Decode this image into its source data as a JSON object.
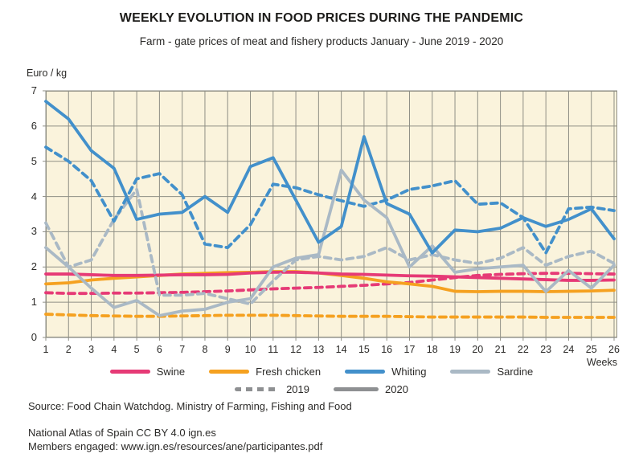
{
  "title": "WEEKLY EVOLUTION IN FOOD PRICES DURING THE PANDEMIC",
  "subtitle": "Farm - gate prices of meat and fishery products January - June 2019 - 2020",
  "y_axis_unit": "Euro / kg",
  "x_axis_label": "Weeks",
  "footer": {
    "source": "Source: Food Chain Watchdog. Ministry of Farming, Fishing and Food",
    "attribution": "National Atlas of Spain CC BY 4.0 ign.es",
    "members": "Members engaged: www.ign.es/resources/ane/participantes.pdf"
  },
  "legend": {
    "products": [
      {
        "label": "Swine",
        "color": "#e63a76"
      },
      {
        "label": "Fresh chicken",
        "color": "#f5a120"
      },
      {
        "label": "Whiting",
        "color": "#4290cb"
      },
      {
        "label": "Sardine",
        "color": "#aab9c5"
      }
    ],
    "years": [
      {
        "label": "2019",
        "style": "dashed",
        "color": "#8e9092"
      },
      {
        "label": "2020",
        "style": "solid",
        "color": "#8e9092"
      }
    ]
  },
  "colors": {
    "plot_background": "#faf3dc",
    "grid": "#8f8f85",
    "text": "#2b2a28"
  },
  "chart_data": {
    "type": "line",
    "title": "WEEKLY EVOLUTION IN FOOD PRICES DURING THE PANDEMIC",
    "subtitle": "Farm - gate prices of meat and fishery products January - June 2019 - 2020",
    "xlabel": "Weeks",
    "ylabel": "Euro / kg",
    "x": [
      1,
      2,
      3,
      4,
      5,
      6,
      7,
      8,
      9,
      10,
      11,
      12,
      13,
      14,
      15,
      16,
      17,
      18,
      19,
      20,
      21,
      22,
      23,
      24,
      25,
      26
    ],
    "x_tick_labels": [
      "1",
      "2",
      "3",
      "4",
      "5",
      "6",
      "7",
      "8",
      "9",
      "10",
      "11",
      "12",
      "13",
      "14",
      "15",
      "16",
      "17",
      "18",
      "19",
      "20",
      "21",
      "22",
      "23",
      "24",
      "25",
      "26"
    ],
    "y_ticks": [
      0,
      1,
      2,
      3,
      4,
      5,
      6,
      7
    ],
    "ylim": [
      0,
      7
    ],
    "grid": true,
    "legend_position": "bottom",
    "series": [
      {
        "name": "Fresh chicken 2019",
        "product": "Fresh chicken",
        "year": "2019",
        "style": "dashed",
        "color": "#f5a120",
        "values": [
          0.66,
          0.64,
          0.62,
          0.61,
          0.6,
          0.6,
          0.61,
          0.62,
          0.63,
          0.63,
          0.63,
          0.62,
          0.61,
          0.6,
          0.6,
          0.6,
          0.59,
          0.58,
          0.58,
          0.58,
          0.58,
          0.58,
          0.57,
          0.57,
          0.57,
          0.57
        ]
      },
      {
        "name": "Swine 2019",
        "product": "Swine",
        "year": "2019",
        "style": "dashed",
        "color": "#e63a76",
        "values": [
          1.27,
          1.25,
          1.25,
          1.26,
          1.26,
          1.27,
          1.28,
          1.3,
          1.32,
          1.35,
          1.38,
          1.4,
          1.42,
          1.45,
          1.48,
          1.52,
          1.56,
          1.63,
          1.7,
          1.76,
          1.79,
          1.81,
          1.82,
          1.82,
          1.81,
          1.8
        ]
      },
      {
        "name": "Fresh chicken 2020",
        "product": "Fresh chicken",
        "year": "2020",
        "style": "solid",
        "color": "#f5a120",
        "values": [
          1.52,
          1.55,
          1.63,
          1.68,
          1.72,
          1.76,
          1.8,
          1.82,
          1.84,
          1.85,
          1.87,
          1.87,
          1.83,
          1.76,
          1.68,
          1.58,
          1.52,
          1.45,
          1.31,
          1.3,
          1.31,
          1.31,
          1.3,
          1.31,
          1.32,
          1.34
        ]
      },
      {
        "name": "Swine 2020",
        "product": "Swine",
        "year": "2020",
        "style": "solid",
        "color": "#e63a76",
        "values": [
          1.8,
          1.8,
          1.78,
          1.76,
          1.76,
          1.77,
          1.78,
          1.78,
          1.79,
          1.83,
          1.85,
          1.85,
          1.83,
          1.8,
          1.79,
          1.77,
          1.75,
          1.74,
          1.72,
          1.7,
          1.68,
          1.66,
          1.64,
          1.62,
          1.62,
          1.63
        ]
      },
      {
        "name": "Sardine 2019",
        "product": "Sardine",
        "year": "2019",
        "style": "dashed",
        "color": "#aab9c5",
        "values": [
          3.25,
          2.0,
          2.2,
          3.35,
          4.2,
          1.2,
          1.2,
          1.25,
          1.1,
          0.95,
          1.6,
          2.2,
          2.3,
          2.2,
          2.3,
          2.55,
          2.2,
          2.35,
          2.2,
          2.1,
          2.25,
          2.55,
          2.05,
          2.3,
          2.45,
          2.1
        ]
      },
      {
        "name": "Whiting 2019",
        "product": "Whiting",
        "year": "2019",
        "style": "dashed",
        "color": "#4290cb",
        "values": [
          5.4,
          5.0,
          4.45,
          3.3,
          4.5,
          4.65,
          4.05,
          2.65,
          2.55,
          3.2,
          4.35,
          4.25,
          4.05,
          3.88,
          3.72,
          3.9,
          4.2,
          4.3,
          4.45,
          3.78,
          3.82,
          3.4,
          2.4,
          3.65,
          3.7,
          3.6
        ]
      },
      {
        "name": "Sardine 2020",
        "product": "Sardine",
        "year": "2020",
        "style": "solid",
        "color": "#aab9c5",
        "values": [
          2.55,
          2.0,
          1.4,
          0.85,
          1.05,
          0.62,
          0.75,
          0.8,
          1.0,
          1.1,
          2.0,
          2.25,
          2.35,
          4.75,
          3.9,
          3.4,
          2.0,
          2.6,
          1.85,
          1.95,
          2.0,
          2.05,
          1.3,
          1.9,
          1.4,
          2.05
        ]
      },
      {
        "name": "Whiting 2020",
        "product": "Whiting",
        "year": "2020",
        "style": "solid",
        "color": "#4290cb",
        "values": [
          6.7,
          6.2,
          5.3,
          4.8,
          3.35,
          3.5,
          3.55,
          4.0,
          3.55,
          4.85,
          5.1,
          3.9,
          2.7,
          3.15,
          5.7,
          3.8,
          3.5,
          2.4,
          3.05,
          3.0,
          3.1,
          3.4,
          3.15,
          3.35,
          3.65,
          2.8
        ]
      }
    ]
  }
}
